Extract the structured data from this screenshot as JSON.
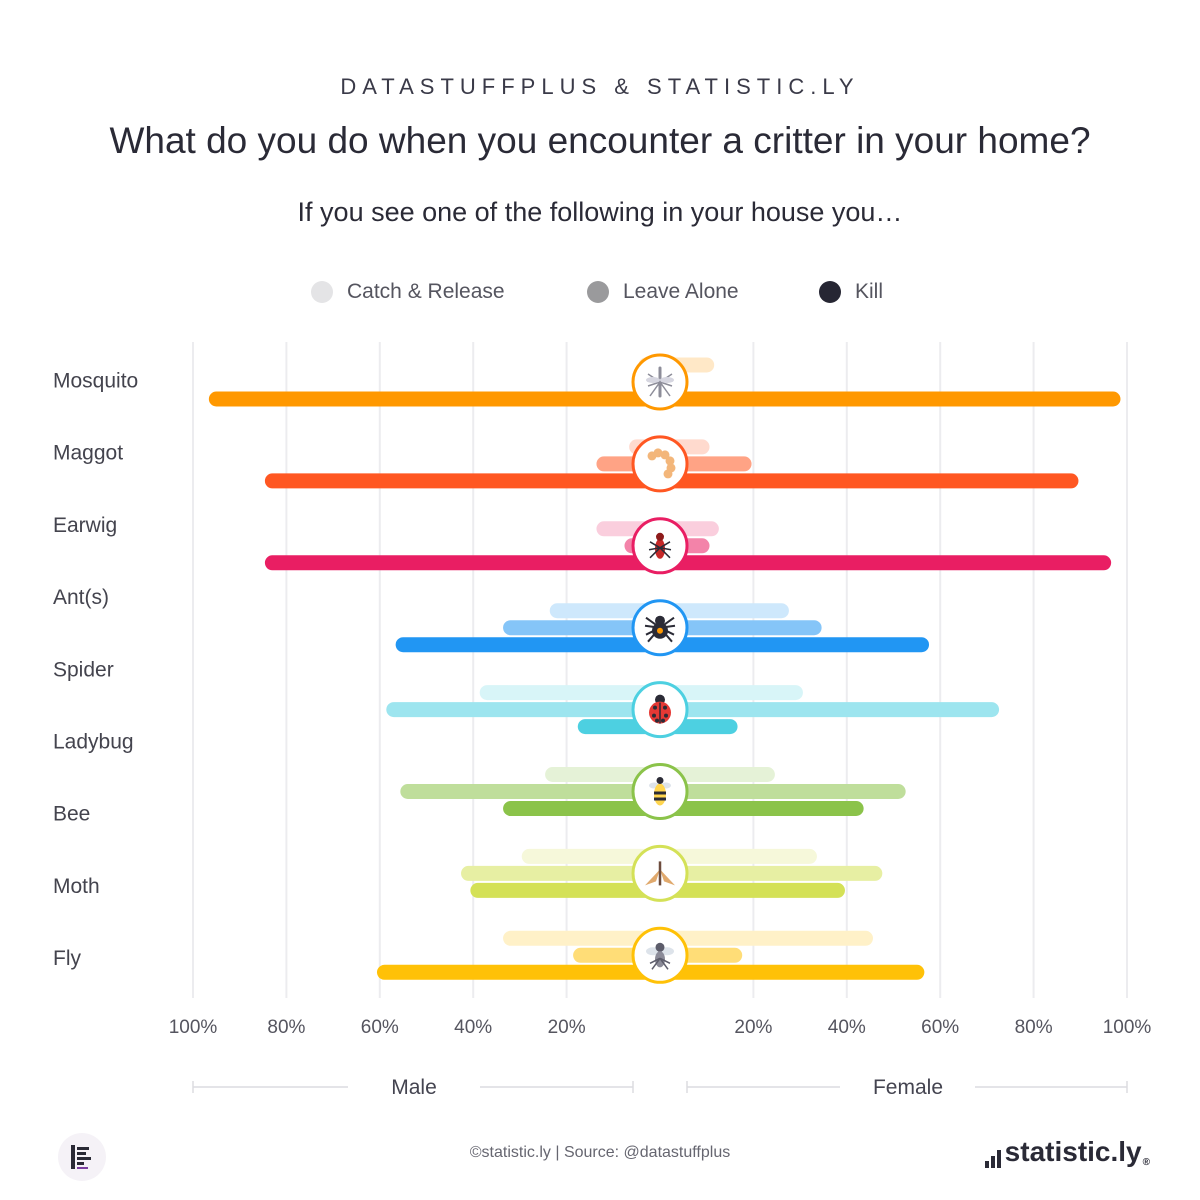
{
  "header": {
    "kicker": "DATASTUFFPLUS & STATISTIC.LY",
    "title": "What do you do when you encounter a critter in your home?",
    "subtitle": "If you see one of the following in your house you…"
  },
  "legend": [
    {
      "label": "Catch & Release",
      "color": "#e4e4e6"
    },
    {
      "label": "Leave Alone",
      "color": "#9a9a9c"
    },
    {
      "label": "Kill",
      "color": "#262633"
    }
  ],
  "footer": {
    "source": "©statistic.ly | Source: @datastuffplus",
    "brand": "statistic.ly",
    "brand_mark": "®"
  },
  "chart_data": {
    "type": "bar",
    "orientation": "horizontal",
    "layout": "diverging",
    "groups": [
      "Male",
      "Female"
    ],
    "xlim": [
      0,
      100
    ],
    "x_tick_labels": [
      "100%",
      "80%",
      "60%",
      "40%",
      "20%",
      "20%",
      "40%",
      "60%",
      "80%",
      "100%"
    ],
    "x_ticks_male": [
      100,
      80,
      60,
      40,
      20
    ],
    "x_ticks_female": [
      20,
      40,
      60,
      80,
      100
    ],
    "group_labels": {
      "male": "Male",
      "female": "Female"
    },
    "series_names": [
      "Catch & Release",
      "Leave Alone",
      "Kill"
    ],
    "grid": true,
    "rows": [
      {
        "label": "Mosquito",
        "icon": "mosquito-icon",
        "color": "#ff9800",
        "male": {
          "catch": 3,
          "leave": 0,
          "kill": 95
        },
        "female": {
          "catch": 10,
          "leave": 0,
          "kill": 97
        }
      },
      {
        "label": "Maggot",
        "icon": "maggot-icon",
        "color": "#ff5722",
        "male": {
          "catch": 5,
          "leave": 12,
          "kill": 83
        },
        "female": {
          "catch": 9,
          "leave": 18,
          "kill": 88
        }
      },
      {
        "label": "Earwig",
        "icon": "earwig-icon",
        "color": "#e91e63",
        "male": {
          "catch": 12,
          "leave": 6,
          "kill": 83
        },
        "female": {
          "catch": 11,
          "leave": 9,
          "kill": 95
        }
      },
      {
        "label": "Ant(s)",
        "icon": "spider-icon",
        "color": "#2196f3",
        "male": {
          "catch": 22,
          "leave": 32,
          "kill": 55
        },
        "female": {
          "catch": 26,
          "leave": 33,
          "kill": 56
        }
      },
      {
        "label": "Spider",
        "icon": "ladybug-icon",
        "color": "#4dd0e1",
        "male": {
          "catch": 37,
          "leave": 57,
          "kill": 16
        },
        "female": {
          "catch": 29,
          "leave": 71,
          "kill": 15
        }
      },
      {
        "label": "Ladybug",
        "icon": "bee-icon",
        "color": "#8bc34a",
        "male": {
          "catch": 23,
          "leave": 54,
          "kill": 32
        },
        "female": {
          "catch": 23,
          "leave": 51,
          "kill": 42
        }
      },
      {
        "label": "Bee",
        "icon": "moth-icon",
        "color": "#d4e157",
        "male": {
          "catch": 28,
          "leave": 41,
          "kill": 39
        },
        "female": {
          "catch": 32,
          "leave": 46,
          "kill": 38
        }
      },
      {
        "label": "Moth",
        "icon": "fly-icon",
        "color": "#ffc107",
        "male": {
          "catch": 32,
          "leave": 17,
          "kill": 59
        },
        "female": {
          "catch": 44,
          "leave": 16,
          "kill": 55
        }
      },
      {
        "label": "Fly",
        "icon": "",
        "color": "",
        "male": null,
        "female": null
      }
    ]
  }
}
